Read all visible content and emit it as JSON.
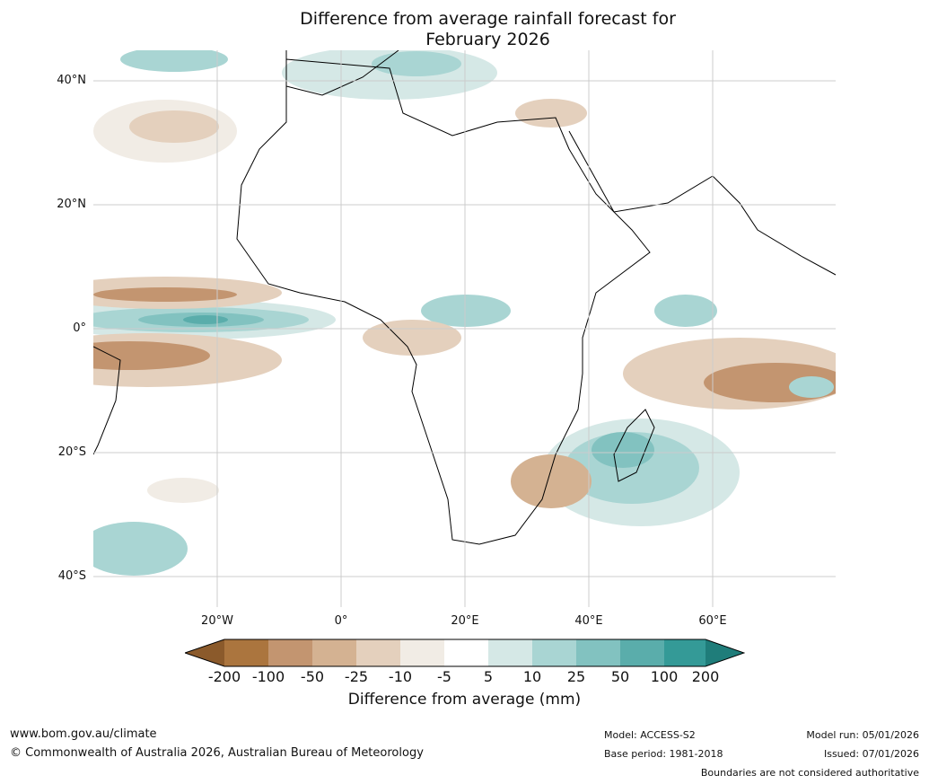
{
  "title": {
    "line1": "Difference from average rainfall forecast for",
    "line2": "February 2026"
  },
  "map": {
    "region": "Africa",
    "latitude_labels": [
      "40°N",
      "20°N",
      "0°",
      "20°S",
      "40°S"
    ],
    "longitude_labels": [
      "20°W",
      "0°",
      "20°E",
      "40°E",
      "60°E"
    ]
  },
  "colorbar": {
    "title": "Difference from average (mm)",
    "ticks": [
      "-200",
      "-100",
      "-50",
      "-25",
      "-10",
      "-5",
      "5",
      "10",
      "25",
      "50",
      "100",
      "200"
    ],
    "colors": {
      "lt_-200": "#8b5a2b",
      "-200_-100": "#ab753e",
      "-100_-50": "#c39570",
      "-50_-25": "#d4b292",
      "-25_-10": "#e4d0bd",
      "-10_-5": "#f1ece5",
      "-5_5": "#ffffff",
      "5_10": "#d5e8e6",
      "10_25": "#a9d5d3",
      "25_50": "#82c2c0",
      "50_100": "#5aadab",
      "100_200": "#349a97",
      "gt_200": "#1f7d7a"
    }
  },
  "footer": {
    "website": "www.bom.gov.au/climate",
    "copyright": "© Commonwealth of Australia 2026, Australian Bureau of Meteorology",
    "model": "Model: ACCESS-S2",
    "base_period": "Base period: 1981-2018",
    "model_run": "Model run: 05/01/2026",
    "issued": "Issued: 07/01/2026",
    "disclaimer": "Boundaries are not considered authoritative"
  }
}
